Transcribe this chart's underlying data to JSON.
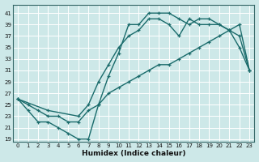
{
  "xlabel": "Humidex (Indice chaleur)",
  "background_color": "#cde8e8",
  "grid_color": "#b8d8d8",
  "line_color": "#1a6b6b",
  "xlim": [
    -0.5,
    23.5
  ],
  "ylim": [
    18.5,
    42.5
  ],
  "xticks": [
    0,
    1,
    2,
    3,
    4,
    5,
    6,
    7,
    8,
    9,
    10,
    11,
    12,
    13,
    14,
    15,
    16,
    17,
    18,
    19,
    20,
    21,
    22,
    23
  ],
  "yticks": [
    19,
    21,
    23,
    25,
    27,
    29,
    31,
    33,
    35,
    37,
    39,
    41
  ],
  "curve1_x": [
    0,
    1,
    2,
    3,
    4,
    5,
    6,
    7,
    8,
    9,
    10,
    11,
    12,
    13,
    14,
    15,
    16,
    17,
    18,
    19,
    20,
    21,
    22,
    23
  ],
  "curve1_y": [
    26,
    24,
    22,
    22,
    21,
    20,
    19,
    19,
    25,
    30,
    34,
    39,
    39,
    41,
    41,
    41,
    40,
    39,
    40,
    40,
    39,
    38,
    35,
    31
  ],
  "curve2_x": [
    0,
    1,
    2,
    3,
    4,
    5,
    6,
    7,
    8,
    9,
    10,
    11,
    12,
    13,
    14,
    15,
    16,
    17,
    18,
    19,
    20,
    21,
    22,
    23
  ],
  "curve2_y": [
    26,
    25,
    24,
    23,
    23,
    22,
    22,
    24,
    25,
    27,
    28,
    29,
    30,
    31,
    32,
    32,
    33,
    34,
    35,
    36,
    37,
    38,
    39,
    31
  ],
  "curve3_x": [
    0,
    3,
    6,
    7,
    8,
    9,
    10,
    11,
    12,
    13,
    14,
    15,
    16,
    17,
    18,
    19,
    20,
    21,
    22,
    23
  ],
  "curve3_y": [
    26,
    24,
    23,
    25,
    29,
    32,
    35,
    37,
    38,
    40,
    40,
    39,
    37,
    40,
    39,
    39,
    39,
    38,
    37,
    31
  ],
  "linewidth": 1.0,
  "markersize": 3.5
}
